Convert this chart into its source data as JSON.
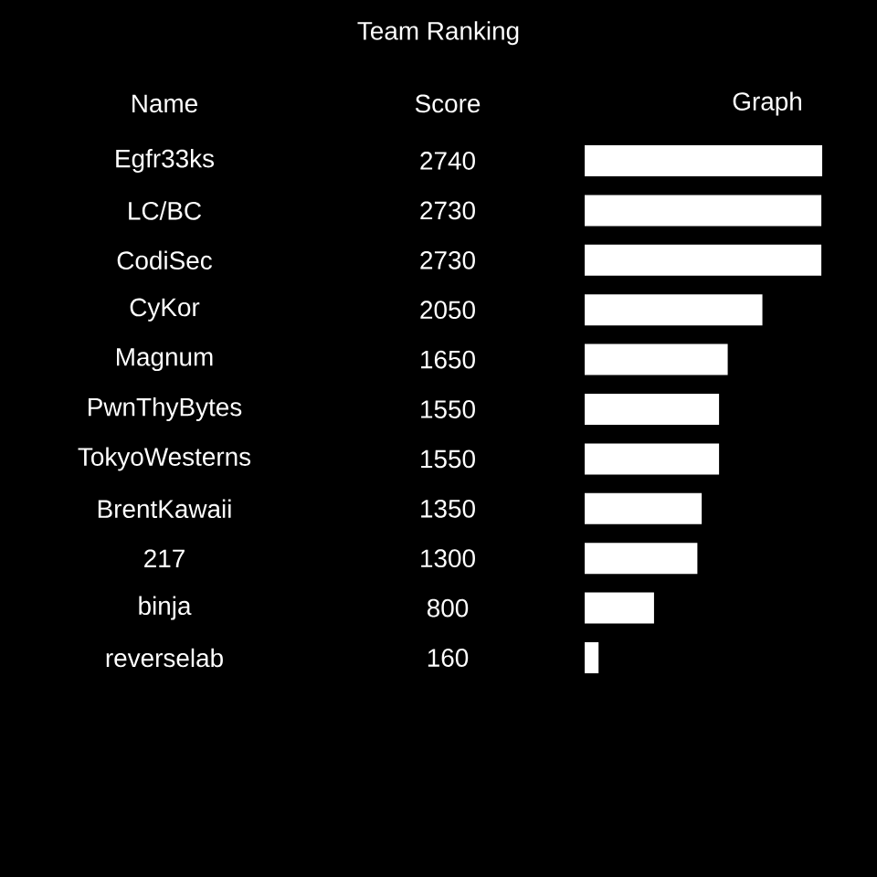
{
  "chart_data": {
    "type": "bar",
    "orientation": "horizontal",
    "title": "Team Ranking",
    "categories": [
      "Egfr33ks",
      "LC/BC",
      "CodiSec",
      "CyKor",
      "Magnum",
      "PwnThyBytes",
      "TokyoWesterns",
      "BrentKawaii",
      "217",
      "binja",
      "reverselab"
    ],
    "values": [
      2740,
      2730,
      2730,
      2050,
      1650,
      1550,
      1550,
      1350,
      1300,
      800,
      160
    ],
    "color": "#ffffff",
    "data_labels": true,
    "annotations": [
      "Name",
      "Score",
      "Graph"
    ]
  }
}
